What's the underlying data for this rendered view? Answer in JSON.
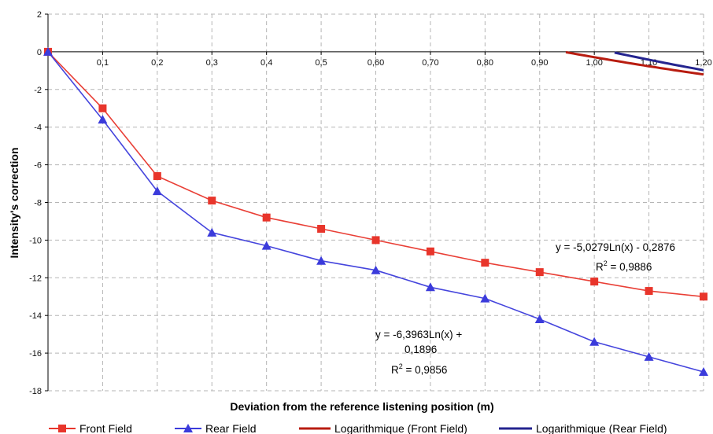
{
  "chart_data": {
    "type": "line",
    "xlabel": "Deviation from the reference listening position (m)",
    "ylabel": "Intensity's correction",
    "xlim": [
      0,
      1.2
    ],
    "ylim": [
      -18,
      2
    ],
    "grid": true,
    "legend_position": "bottom",
    "x_tick_values": [
      0.1,
      0.2,
      0.3,
      0.4,
      0.5,
      0.6,
      0.7,
      0.8,
      0.9,
      1.0,
      1.1,
      1.2
    ],
    "x_tick_labels": [
      "0,1",
      "0,2",
      "0,3",
      "0,4",
      "0,5",
      "0,60",
      "0,70",
      "0,80",
      "0,90",
      "1,00",
      "1,10",
      "1,20"
    ],
    "y_tick_values": [
      2,
      0,
      -2,
      -4,
      -6,
      -8,
      -10,
      -12,
      -14,
      -16,
      -18
    ],
    "y_tick_labels": [
      "2",
      "0",
      "-2",
      "-4",
      "-6",
      "-8",
      "-10",
      "-12",
      "-14",
      "-16",
      "-18"
    ],
    "x": [
      0.0,
      0.1,
      0.2,
      0.3,
      0.4,
      0.5,
      0.6,
      0.7,
      0.8,
      0.9,
      1.0,
      1.1,
      1.2
    ],
    "series": [
      {
        "name": "Front Field",
        "color": "#e8352b",
        "marker": "square",
        "values": [
          0,
          -3.0,
          -6.6,
          -7.9,
          -8.8,
          -9.4,
          -10.0,
          -10.6,
          -11.2,
          -11.7,
          -12.2,
          -12.7,
          -13.0
        ]
      },
      {
        "name": "Rear Field",
        "color": "#3b3bdb",
        "marker": "triangle",
        "values": [
          0,
          -3.6,
          -7.4,
          -9.6,
          -10.3,
          -11.1,
          -11.6,
          -12.5,
          -13.1,
          -14.2,
          -15.4,
          -16.2,
          -17.0
        ]
      }
    ],
    "trendlines": [
      {
        "name": "Logarithmique (Front Field)",
        "color": "#b81c10",
        "a": -5.0279,
        "b": -0.2876,
        "equation": "y = -5,0279Ln(x) - 0,2876",
        "r2_label": "R",
        "r2_exp": "2",
        "r2_value": " = 0,9886"
      },
      {
        "name": "Logarithmique (Rear Field)",
        "color": "#24248f",
        "a": -6.3963,
        "b": 0.1896,
        "equation_line1": "y = -6,3963Ln(x) +",
        "equation_line2": "0,1896",
        "r2_label": "R",
        "r2_exp": "2",
        "r2_value": " = 0,9856"
      }
    ]
  }
}
